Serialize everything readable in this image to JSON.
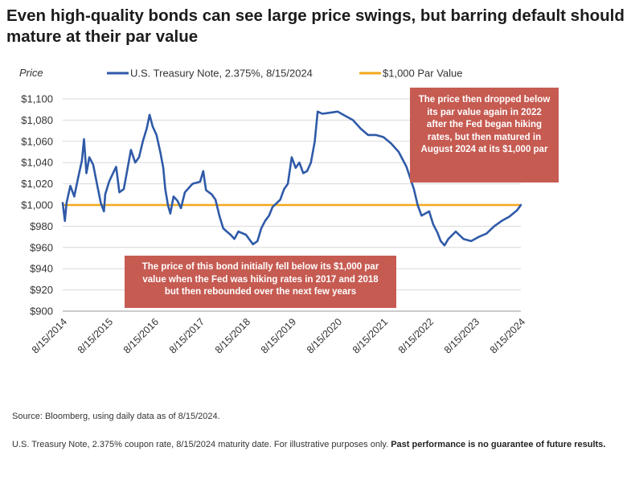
{
  "title": "Even high-quality bonds can see large price swings, but barring default should mature at their par value",
  "chart_data": {
    "type": "line",
    "ylabel": "Price",
    "xlabel": "",
    "y_unit": "$",
    "ylim": [
      900,
      1100
    ],
    "yticks": [
      900,
      920,
      940,
      960,
      980,
      1000,
      1020,
      1040,
      1060,
      1080,
      1100
    ],
    "ytick_labels": [
      "$900",
      "$920",
      "$940",
      "$960",
      "$980",
      "$1,000",
      "$1,020",
      "$1,040",
      "$1,060",
      "$1,080",
      "$1,100"
    ],
    "xlim": [
      "2014-08-15",
      "2024-08-15"
    ],
    "xtick_labels": [
      "8/15/2014",
      "8/15/2015",
      "8/15/2016",
      "8/15/2017",
      "8/15/2018",
      "8/15/2019",
      "8/15/2020",
      "8/15/2021",
      "8/15/2022",
      "8/15/2023",
      "8/15/2024"
    ],
    "grid": "horizontal",
    "legend_position": "top",
    "series": [
      {
        "name": "U.S. Treasury Note, 2.375%, 8/15/2024",
        "color": "#2f5aa8",
        "points": [
          [
            "2014-08-15",
            1002
          ],
          [
            "2014-09-01",
            985
          ],
          [
            "2014-09-15",
            1002
          ],
          [
            "2014-10-15",
            1018
          ],
          [
            "2014-11-15",
            1008
          ],
          [
            "2014-12-15",
            1025
          ],
          [
            "2015-01-15",
            1042
          ],
          [
            "2015-02-01",
            1062
          ],
          [
            "2015-02-20",
            1030
          ],
          [
            "2015-03-15",
            1045
          ],
          [
            "2015-04-15",
            1038
          ],
          [
            "2015-05-15",
            1020
          ],
          [
            "2015-06-15",
            1002
          ],
          [
            "2015-07-10",
            994
          ],
          [
            "2015-07-20",
            1010
          ],
          [
            "2015-08-20",
            1022
          ],
          [
            "2015-09-20",
            1030
          ],
          [
            "2015-10-15",
            1036
          ],
          [
            "2015-11-10",
            1012
          ],
          [
            "2015-12-15",
            1015
          ],
          [
            "2016-01-15",
            1035
          ],
          [
            "2016-02-10",
            1052
          ],
          [
            "2016-03-15",
            1040
          ],
          [
            "2016-04-15",
            1045
          ],
          [
            "2016-05-15",
            1060
          ],
          [
            "2016-06-15",
            1072
          ],
          [
            "2016-07-08",
            1085
          ],
          [
            "2016-08-01",
            1074
          ],
          [
            "2016-09-01",
            1066
          ],
          [
            "2016-10-01",
            1050
          ],
          [
            "2016-10-25",
            1035
          ],
          [
            "2016-11-10",
            1015
          ],
          [
            "2016-12-01",
            1000
          ],
          [
            "2016-12-20",
            992
          ],
          [
            "2017-01-15",
            1008
          ],
          [
            "2017-02-15",
            1004
          ],
          [
            "2017-03-15",
            997
          ],
          [
            "2017-04-15",
            1012
          ],
          [
            "2017-06-15",
            1020
          ],
          [
            "2017-08-15",
            1022
          ],
          [
            "2017-09-08",
            1032
          ],
          [
            "2017-10-01",
            1014
          ],
          [
            "2017-11-15",
            1010
          ],
          [
            "2017-12-15",
            1005
          ],
          [
            "2018-01-15",
            990
          ],
          [
            "2018-02-15",
            978
          ],
          [
            "2018-03-15",
            975
          ],
          [
            "2018-04-15",
            972
          ],
          [
            "2018-05-15",
            968
          ],
          [
            "2018-06-15",
            975
          ],
          [
            "2018-08-15",
            972
          ],
          [
            "2018-10-10",
            963
          ],
          [
            "2018-11-15",
            966
          ],
          [
            "2018-12-15",
            978
          ],
          [
            "2019-01-15",
            985
          ],
          [
            "2019-02-15",
            990
          ],
          [
            "2019-03-15",
            998
          ],
          [
            "2019-05-15",
            1005
          ],
          [
            "2019-06-15",
            1015
          ],
          [
            "2019-07-15",
            1020
          ],
          [
            "2019-08-15",
            1045
          ],
          [
            "2019-09-15",
            1035
          ],
          [
            "2019-10-15",
            1040
          ],
          [
            "2019-11-15",
            1030
          ],
          [
            "2019-12-15",
            1032
          ],
          [
            "2020-01-15",
            1040
          ],
          [
            "2020-02-15",
            1060
          ],
          [
            "2020-03-09",
            1088
          ],
          [
            "2020-04-15",
            1086
          ],
          [
            "2020-06-15",
            1087
          ],
          [
            "2020-08-15",
            1088
          ],
          [
            "2020-10-15",
            1084
          ],
          [
            "2020-12-15",
            1080
          ],
          [
            "2021-02-15",
            1072
          ],
          [
            "2021-04-15",
            1066
          ],
          [
            "2021-06-15",
            1066
          ],
          [
            "2021-08-15",
            1064
          ],
          [
            "2021-10-15",
            1058
          ],
          [
            "2021-12-15",
            1050
          ],
          [
            "2022-02-15",
            1036
          ],
          [
            "2022-04-15",
            1015
          ],
          [
            "2022-05-15",
            1000
          ],
          [
            "2022-06-15",
            990
          ],
          [
            "2022-08-15",
            994
          ],
          [
            "2022-09-15",
            982
          ],
          [
            "2022-10-20",
            974
          ],
          [
            "2022-11-15",
            966
          ],
          [
            "2022-12-15",
            962
          ],
          [
            "2023-01-15",
            968
          ],
          [
            "2023-03-15",
            975
          ],
          [
            "2023-05-15",
            968
          ],
          [
            "2023-07-15",
            966
          ],
          [
            "2023-09-15",
            970
          ],
          [
            "2023-11-15",
            973
          ],
          [
            "2024-01-15",
            980
          ],
          [
            "2024-03-15",
            985
          ],
          [
            "2024-05-15",
            989
          ],
          [
            "2024-07-15",
            995
          ],
          [
            "2024-08-15",
            1000
          ]
        ]
      },
      {
        "name": "$1,000 Par Value",
        "color": "#f2a81d",
        "points": [
          [
            "2014-08-15",
            1000
          ],
          [
            "2024-08-15",
            1000
          ]
        ]
      }
    ],
    "annotations": [
      "The price then dropped below its par value again in 2022 after the Fed began hiking rates, but then matured in August 2024 at its $1,000 par",
      "The price of this bond initially fell below its $1,000 par value when the Fed was hiking rates in 2017 and 2018 but then rebounded over the next few years"
    ]
  },
  "footer": {
    "source": "Source: Bloomberg, using daily data as of 8/15/2024.",
    "note": "U.S. Treasury Note, 2.375% coupon rate, 8/15/2024 maturity date. For illustrative purposes only.",
    "disclaimer": "Past performance is no guarantee of future results."
  }
}
